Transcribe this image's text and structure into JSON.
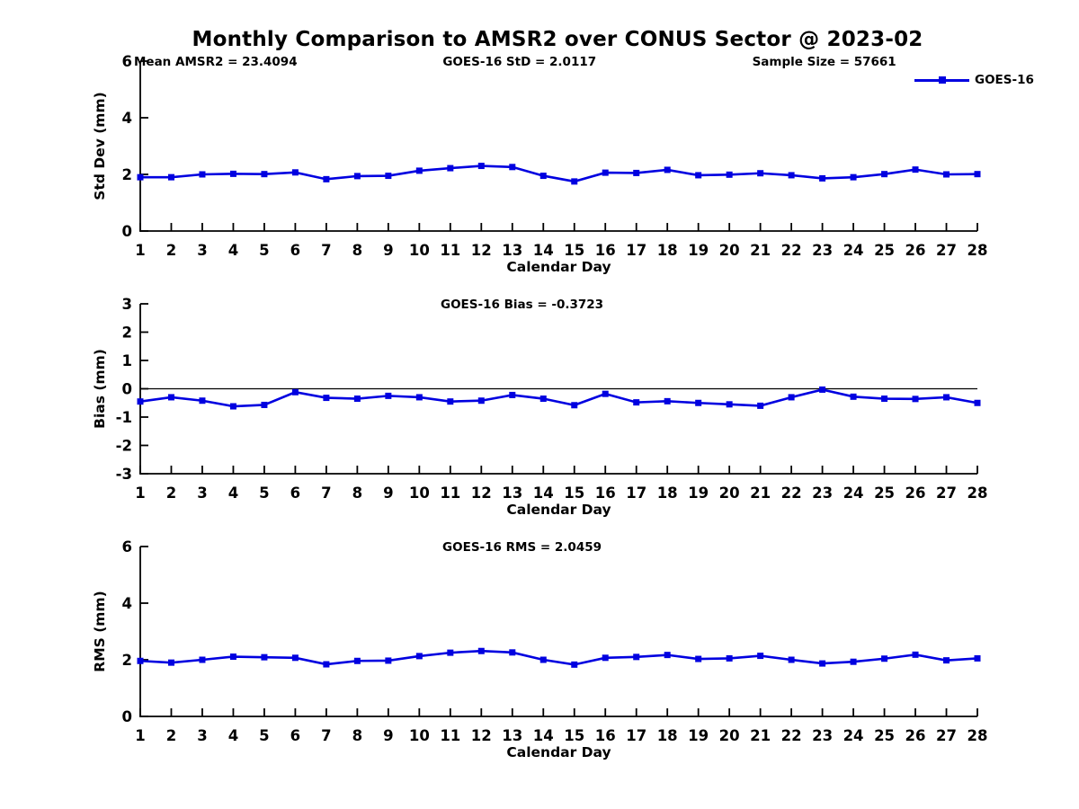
{
  "title": "Monthly Comparison to AMSR2 over CONUS Sector @ 2023-02",
  "colors": {
    "series_blue": "#0000e0",
    "axis_black": "#000000"
  },
  "chart_data": [
    {
      "type": "line",
      "name": "std-dev",
      "ylabel": "Std Dev (mm)",
      "xlabel": "Calendar Day",
      "ylim": [
        0,
        6
      ],
      "yticks": [
        0,
        2,
        4,
        6
      ],
      "grid": false,
      "zero_line": false,
      "annotations": [
        "Mean AMSR2 = 23.4094",
        "GOES-16 StD = 2.0117",
        "Sample Size = 57661"
      ],
      "legend": {
        "label": "GOES-16",
        "position": "northeast-outside"
      },
      "x": [
        1,
        2,
        3,
        4,
        5,
        6,
        7,
        8,
        9,
        10,
        11,
        12,
        13,
        14,
        15,
        16,
        17,
        18,
        19,
        20,
        21,
        22,
        23,
        24,
        25,
        26,
        27,
        28
      ],
      "series": [
        {
          "name": "GOES-16",
          "color": "#0000e0",
          "marker": "square",
          "values": [
            1.9,
            1.9,
            2.0,
            2.02,
            2.01,
            2.07,
            1.83,
            1.94,
            1.95,
            2.13,
            2.22,
            2.3,
            2.26,
            1.95,
            1.75,
            2.06,
            2.05,
            2.16,
            1.97,
            1.99,
            2.04,
            1.97,
            1.86,
            1.9,
            2.01,
            2.17,
            2.0,
            2.01
          ]
        }
      ]
    },
    {
      "type": "line",
      "name": "bias",
      "ylabel": "Bias (mm)",
      "xlabel": "Calendar Day",
      "ylim": [
        -3,
        3
      ],
      "yticks": [
        -3,
        -2,
        -1,
        0,
        1,
        2,
        3
      ],
      "grid": false,
      "zero_line": true,
      "annotations": [
        "GOES-16 Bias = -0.3723"
      ],
      "x": [
        1,
        2,
        3,
        4,
        5,
        6,
        7,
        8,
        9,
        10,
        11,
        12,
        13,
        14,
        15,
        16,
        17,
        18,
        19,
        20,
        21,
        22,
        23,
        24,
        25,
        26,
        27,
        28
      ],
      "series": [
        {
          "name": "GOES-16",
          "color": "#0000e0",
          "marker": "square",
          "values": [
            -0.45,
            -0.3,
            -0.42,
            -0.62,
            -0.57,
            -0.12,
            -0.32,
            -0.35,
            -0.25,
            -0.3,
            -0.45,
            -0.42,
            -0.22,
            -0.35,
            -0.58,
            -0.18,
            -0.48,
            -0.44,
            -0.5,
            -0.55,
            -0.6,
            -0.3,
            -0.03,
            -0.28,
            -0.35,
            -0.36,
            -0.3,
            -0.5
          ]
        }
      ]
    },
    {
      "type": "line",
      "name": "rms",
      "ylabel": "RMS (mm)",
      "xlabel": "Calendar Day",
      "ylim": [
        0,
        6
      ],
      "yticks": [
        0,
        2,
        4,
        6
      ],
      "grid": false,
      "zero_line": false,
      "annotations": [
        "GOES-16 RMS = 2.0459"
      ],
      "x": [
        1,
        2,
        3,
        4,
        5,
        6,
        7,
        8,
        9,
        10,
        11,
        12,
        13,
        14,
        15,
        16,
        17,
        18,
        19,
        20,
        21,
        22,
        23,
        24,
        25,
        26,
        27,
        28
      ],
      "series": [
        {
          "name": "GOES-16",
          "color": "#0000e0",
          "marker": "square",
          "values": [
            1.96,
            1.9,
            2.0,
            2.11,
            2.09,
            2.07,
            1.84,
            1.96,
            1.97,
            2.13,
            2.25,
            2.31,
            2.26,
            2.0,
            1.83,
            2.07,
            2.1,
            2.17,
            2.03,
            2.05,
            2.14,
            2.0,
            1.87,
            1.93,
            2.04,
            2.18,
            1.98,
            2.05
          ]
        }
      ]
    }
  ]
}
